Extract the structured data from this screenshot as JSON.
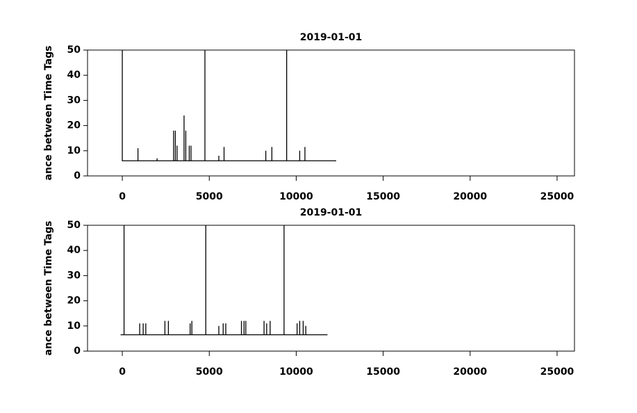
{
  "chart_data": [
    {
      "type": "line",
      "title": "2019-01-01",
      "y_label": "ance between Time Tags",
      "color": "#000000",
      "x": [
        0,
        0,
        0,
        900,
        900,
        900,
        2000,
        2000,
        2000,
        2950,
        2950,
        2950,
        3050,
        3050,
        3050,
        3150,
        3150,
        3150,
        3550,
        3550,
        3550,
        3650,
        3650,
        3650,
        3850,
        3850,
        3850,
        3950,
        3950,
        3950,
        4750,
        4750,
        4750,
        5550,
        5550,
        5550,
        5850,
        5850,
        5850,
        8250,
        8250,
        8250,
        8600,
        8600,
        8600,
        9450,
        9450,
        9450,
        10200,
        10200,
        10200,
        10500,
        10500,
        10500,
        12300
      ],
      "values": [
        6,
        50,
        6,
        6,
        11,
        6,
        6,
        7,
        6,
        6,
        18,
        6,
        6,
        18,
        6,
        6,
        12,
        6,
        6,
        24,
        6,
        6,
        18,
        6,
        6,
        12,
        6,
        6,
        12,
        6,
        6,
        50,
        6,
        6,
        8,
        6,
        6,
        11.5,
        6,
        6,
        10,
        6,
        6,
        11.5,
        6,
        6,
        50,
        6,
        6,
        10,
        6,
        6,
        11.5,
        6,
        6
      ],
      "xlim": [
        -2000,
        26000
      ],
      "xticks": [
        0,
        5000,
        10000,
        15000,
        20000,
        25000
      ],
      "ylim": [
        0,
        50
      ],
      "yticks": [
        0,
        10,
        20,
        30,
        40,
        50
      ]
    },
    {
      "type": "line",
      "title": "2019-01-01",
      "y_label": "ance between Time Tags",
      "color": "#000000",
      "x": [
        -100,
        100,
        100,
        100,
        1000,
        1000,
        1000,
        1200,
        1200,
        1200,
        1350,
        1350,
        1350,
        2450,
        2450,
        2450,
        2650,
        2650,
        2650,
        3900,
        3900,
        3900,
        4000,
        4000,
        4000,
        4800,
        4800,
        4800,
        5550,
        5550,
        5550,
        5800,
        5800,
        5800,
        5950,
        5950,
        5950,
        6850,
        6850,
        6850,
        7000,
        7000,
        7000,
        7100,
        7100,
        7100,
        8150,
        8150,
        8150,
        8300,
        8300,
        8300,
        8500,
        8500,
        8500,
        9300,
        9300,
        9300,
        10050,
        10050,
        10050,
        10200,
        10200,
        10200,
        10400,
        10400,
        10400,
        10550,
        10550,
        10550,
        11800
      ],
      "values": [
        6.5,
        6.5,
        50,
        6.5,
        6.5,
        11,
        6.5,
        6.5,
        11,
        6.5,
        6.5,
        11,
        6.5,
        6.5,
        12,
        6.5,
        6.5,
        12,
        6.5,
        6.5,
        11,
        6.5,
        6.5,
        12,
        6.5,
        6.5,
        50,
        6.5,
        6.5,
        10,
        6.5,
        6.5,
        11,
        6.5,
        6.5,
        11,
        6.5,
        6.5,
        12,
        6.5,
        6.5,
        12,
        6.5,
        6.5,
        12,
        6.5,
        6.5,
        12,
        6.5,
        6.5,
        11,
        6.5,
        6.5,
        12,
        6.5,
        6.5,
        50,
        6.5,
        6.5,
        11,
        6.5,
        6.5,
        12,
        6.5,
        6.5,
        12,
        6.5,
        6.5,
        10,
        6.5,
        6.5
      ],
      "xlim": [
        -2000,
        26000
      ],
      "xticks": [
        0,
        5000,
        10000,
        15000,
        20000,
        25000
      ],
      "ylim": [
        0,
        50
      ],
      "yticks": [
        0,
        10,
        20,
        30,
        40,
        50
      ]
    }
  ]
}
